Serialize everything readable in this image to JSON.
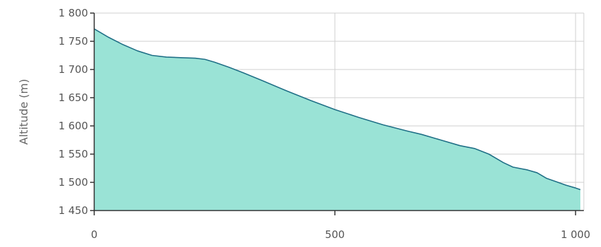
{
  "chart_data": {
    "type": "area",
    "ylabel": "Altitude (m)",
    "xlabel": "",
    "xlim": [
      0,
      1010
    ],
    "ylim": [
      1450,
      1800
    ],
    "x_ticks": [
      0,
      500,
      1000
    ],
    "x_tick_labels": [
      "0",
      "500",
      "1 000"
    ],
    "y_ticks": [
      1450,
      1500,
      1550,
      1600,
      1650,
      1700,
      1750,
      1800
    ],
    "y_tick_labels": [
      "1 450",
      "1 500",
      "1 550",
      "1 600",
      "1 650",
      "1 700",
      "1 750",
      "1 800"
    ],
    "grid": true,
    "fill_color": "#9ae3d6",
    "line_color": "#1f6f86",
    "series": [
      {
        "x": [
          0,
          10,
          30,
          60,
          90,
          120,
          150,
          180,
          210,
          230,
          250,
          280,
          310,
          350,
          400,
          450,
          500,
          550,
          600,
          650,
          680,
          720,
          760,
          790,
          820,
          850,
          870,
          900,
          920,
          940,
          960,
          980,
          1000,
          1010
        ],
        "y": [
          1772,
          1767,
          1757,
          1744,
          1733,
          1725,
          1722,
          1721,
          1720,
          1718,
          1713,
          1704,
          1694,
          1680,
          1662,
          1645,
          1629,
          1615,
          1602,
          1591,
          1585,
          1575,
          1565,
          1560,
          1550,
          1535,
          1527,
          1522,
          1517,
          1507,
          1501,
          1495,
          1490,
          1487
        ]
      }
    ]
  }
}
